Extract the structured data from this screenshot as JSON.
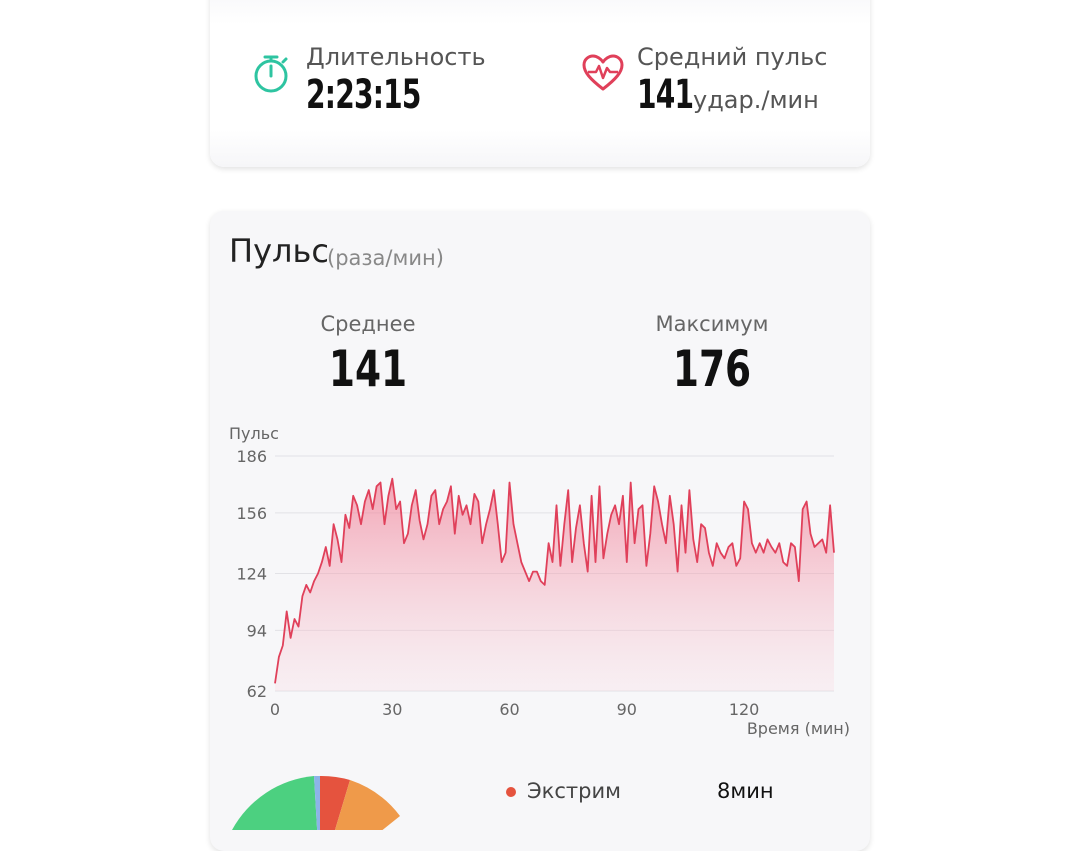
{
  "summary": {
    "duration_label": "Длительность",
    "duration_value": "2:23:15",
    "avg_pulse_label": "Средний пульс",
    "avg_pulse_value": "141",
    "avg_pulse_unit": "удар./мин"
  },
  "pulse_card": {
    "title": "Пульс",
    "unit": "(раза/мин)",
    "avg_label": "Среднее",
    "avg_value": "141",
    "max_label": "Максимум",
    "max_value": "176"
  },
  "chart_data": {
    "type": "area",
    "ylabel": "Пульс",
    "xlabel": "Время (мин)",
    "yticks": [
      62,
      94,
      124,
      156,
      186
    ],
    "xticks": [
      0,
      30,
      60,
      90,
      120
    ],
    "xlim": [
      0,
      143
    ],
    "ylim": [
      62,
      186
    ],
    "grid": true,
    "color": "#e0405a",
    "x": [
      0,
      1,
      2,
      3,
      4,
      5,
      6,
      7,
      8,
      9,
      10,
      11,
      12,
      13,
      14,
      15,
      16,
      17,
      18,
      19,
      20,
      21,
      22,
      23,
      24,
      25,
      26,
      27,
      28,
      29,
      30,
      31,
      32,
      33,
      34,
      35,
      36,
      37,
      38,
      39,
      40,
      41,
      42,
      43,
      44,
      45,
      46,
      47,
      48,
      49,
      50,
      51,
      52,
      53,
      54,
      55,
      56,
      57,
      58,
      59,
      60,
      61,
      62,
      63,
      64,
      65,
      66,
      67,
      68,
      69,
      70,
      71,
      72,
      73,
      74,
      75,
      76,
      77,
      78,
      79,
      80,
      81,
      82,
      83,
      84,
      85,
      86,
      87,
      88,
      89,
      90,
      91,
      92,
      93,
      94,
      95,
      96,
      97,
      98,
      99,
      100,
      101,
      102,
      103,
      104,
      105,
      106,
      107,
      108,
      109,
      110,
      111,
      112,
      113,
      114,
      115,
      116,
      117,
      118,
      119,
      120,
      121,
      122,
      123,
      124,
      125,
      126,
      127,
      128,
      129,
      130,
      131,
      132,
      133,
      134,
      135,
      136,
      137,
      138,
      139,
      140,
      141,
      142,
      143
    ],
    "y": [
      66,
      80,
      86,
      104,
      90,
      100,
      96,
      112,
      118,
      114,
      120,
      124,
      130,
      138,
      128,
      150,
      142,
      130,
      155,
      148,
      165,
      160,
      150,
      162,
      168,
      158,
      170,
      172,
      150,
      165,
      174,
      158,
      162,
      140,
      145,
      160,
      168,
      152,
      142,
      150,
      165,
      168,
      150,
      158,
      162,
      170,
      145,
      165,
      155,
      160,
      150,
      166,
      162,
      140,
      150,
      158,
      168,
      150,
      130,
      135,
      172,
      150,
      140,
      130,
      125,
      120,
      125,
      125,
      120,
      118,
      140,
      130,
      160,
      128,
      150,
      168,
      130,
      148,
      160,
      140,
      125,
      165,
      130,
      170,
      132,
      145,
      155,
      160,
      150,
      165,
      130,
      172,
      140,
      158,
      160,
      128,
      145,
      170,
      162,
      150,
      140,
      165,
      150,
      125,
      160,
      135,
      168,
      142,
      130,
      150,
      148,
      135,
      128,
      140,
      135,
      132,
      138,
      140,
      128,
      132,
      162,
      158,
      140,
      135,
      140,
      135,
      142,
      138,
      135,
      140,
      130,
      128,
      140,
      138,
      120,
      158,
      162,
      145,
      138,
      140,
      142,
      135,
      160,
      135
    ]
  },
  "legend": {
    "zone_label": "Экстрим",
    "zone_value": "8мин",
    "zone_color": "#e5533e"
  },
  "pie": {
    "colors": [
      "#4cd080",
      "#8cb4e8",
      "#e5533e",
      "#ef9a4a"
    ]
  }
}
